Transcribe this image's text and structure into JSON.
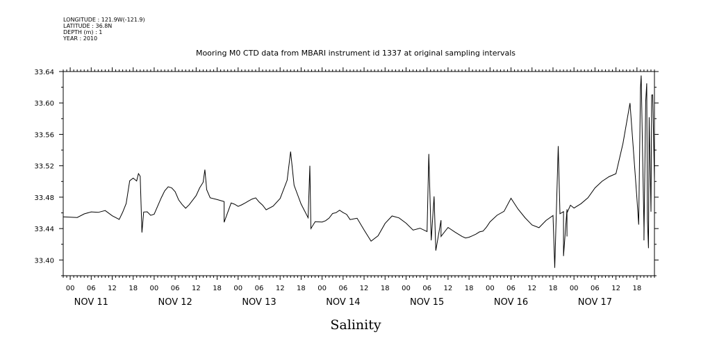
{
  "metadata": {
    "longitude": "LONGITUDE : 121.9W(-121.9)",
    "latitude": "LATITUDE : 36.8N",
    "depth": "DEPTH (m) : 1",
    "year": "YEAR : 2010"
  },
  "chart_data": {
    "type": "line",
    "title": "Mooring M0 CTD data from MBARI instrument id 1337 at original sampling intervals",
    "xlabel": "Salinity",
    "ylabel": "",
    "ylim": [
      33.38,
      33.64
    ],
    "yticks": [
      "33.40",
      "33.44",
      "33.48",
      "33.52",
      "33.56",
      "33.60",
      "33.64"
    ],
    "xlim_hours": [
      -2,
      167
    ],
    "x_day_labels": [
      "NOV 11",
      "NOV 12",
      "NOV 13",
      "NOV 14",
      "NOV 15",
      "NOV 16",
      "NOV 17"
    ],
    "x_hour_labels": [
      "00",
      "06",
      "12",
      "18"
    ],
    "grid": false,
    "line_color": "#000000",
    "series": [
      {
        "x_hours": [
          -2,
          2,
          4,
          6,
          8,
          10,
          12,
          14,
          15,
          16,
          17,
          18,
          19,
          20,
          21,
          22,
          23,
          24,
          26,
          27,
          28,
          29,
          30,
          31,
          32,
          33,
          34,
          36,
          37,
          38,
          39,
          40,
          42,
          44,
          46,
          47,
          48,
          49,
          50,
          51,
          52,
          53,
          54,
          55,
          56,
          58,
          60,
          62,
          64,
          66,
          68,
          70,
          72,
          73,
          74,
          75,
          76,
          77,
          78,
          79,
          80,
          82,
          84,
          86,
          88,
          90,
          92,
          94,
          96,
          98,
          100,
          102,
          104,
          106,
          108,
          110,
          112,
          113,
          114,
          115,
          116,
          117,
          118,
          119,
          120,
          122,
          124,
          126,
          128,
          130,
          132,
          134,
          136,
          138,
          140,
          141,
          142,
          143,
          144,
          146,
          148,
          150,
          152,
          154,
          156,
          158,
          160,
          162,
          163,
          164,
          164.5,
          165,
          165.5,
          166,
          166.5,
          167
        ],
        "values": [
          33.455,
          33.454,
          33.458,
          33.46,
          33.462,
          33.463,
          33.458,
          33.452,
          33.46,
          33.47,
          33.5,
          33.503,
          33.5,
          33.505,
          33.46,
          33.46,
          33.458,
          33.46,
          33.48,
          33.49,
          33.495,
          33.493,
          33.485,
          33.475,
          33.47,
          33.465,
          33.47,
          33.48,
          33.49,
          33.5,
          33.49,
          33.48,
          33.478,
          33.475,
          33.472,
          33.47,
          33.468,
          33.47,
          33.472,
          33.475,
          33.478,
          33.48,
          33.475,
          33.47,
          33.465,
          33.47,
          33.478,
          33.5,
          33.495,
          33.47,
          33.455,
          33.45,
          33.45,
          33.452,
          33.455,
          33.458,
          33.46,
          33.462,
          33.46,
          33.458,
          33.45,
          33.455,
          33.44,
          33.425,
          33.432,
          33.445,
          33.455,
          33.452,
          33.445,
          33.44,
          33.442,
          33.438,
          33.48,
          33.45,
          33.44,
          33.435,
          33.432,
          33.43,
          33.43,
          33.432,
          33.434,
          33.436,
          33.438,
          33.44,
          33.448,
          33.455,
          33.462,
          33.478,
          33.465,
          33.455,
          33.445,
          33.44,
          33.45,
          33.455,
          33.458,
          33.462,
          33.465,
          33.47,
          33.468,
          33.472,
          33.48,
          33.49,
          33.5,
          33.505,
          33.51,
          33.55,
          33.6,
          33.48,
          33.62,
          33.44,
          33.6,
          33.45,
          33.58,
          33.46,
          33.61,
          33.5
        ],
        "spikes": [
          {
            "x": 19.5,
            "y": 33.51
          },
          {
            "x": 20.5,
            "y": 33.435
          },
          {
            "x": 38.5,
            "y": 33.515
          },
          {
            "x": 44,
            "y": 33.448
          },
          {
            "x": 63,
            "y": 33.538
          },
          {
            "x": 68.5,
            "y": 33.52
          },
          {
            "x": 68.8,
            "y": 33.44
          },
          {
            "x": 102.5,
            "y": 33.535
          },
          {
            "x": 103.2,
            "y": 33.425
          },
          {
            "x": 104.5,
            "y": 33.412
          },
          {
            "x": 106,
            "y": 33.43
          },
          {
            "x": 138.5,
            "y": 33.39
          },
          {
            "x": 139.5,
            "y": 33.545
          },
          {
            "x": 141,
            "y": 33.405
          },
          {
            "x": 142,
            "y": 33.43
          },
          {
            "x": 142,
            "y": 33.46
          },
          {
            "x": 162.5,
            "y": 33.445
          },
          {
            "x": 163.2,
            "y": 33.635
          },
          {
            "x": 164,
            "y": 33.425
          },
          {
            "x": 164.8,
            "y": 33.625
          },
          {
            "x": 165.3,
            "y": 33.415
          },
          {
            "x": 166.2,
            "y": 33.61
          }
        ]
      }
    ]
  }
}
